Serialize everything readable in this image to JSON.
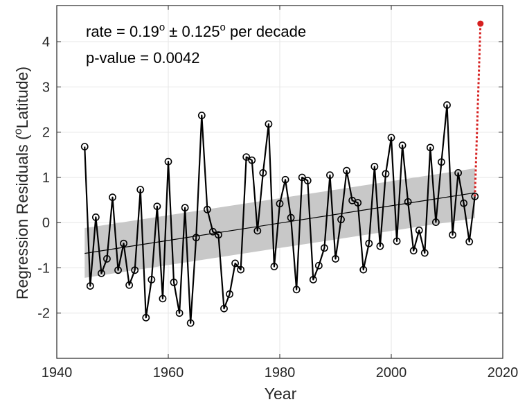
{
  "chart_data": {
    "type": "line",
    "xlabel": "Year",
    "ylabel_text": "Regression Residuals (",
    "ylabel_sup": "o",
    "ylabel_text2": "Latitude)",
    "xlim": [
      1940,
      2020
    ],
    "ylim": [
      -3,
      4.8
    ],
    "xticks": [
      1940,
      1960,
      1980,
      2000,
      2020
    ],
    "yticks": [
      -2,
      -1,
      0,
      1,
      2,
      3,
      4
    ],
    "grid": true,
    "annotations": {
      "rate_prefix": "rate = 0.19",
      "rate_sup1": "o",
      "rate_mid": " ± 0.125",
      "rate_sup2": "o",
      "rate_suffix": " per decade",
      "pvalue": "p-value = 0.0042"
    },
    "series": [
      {
        "style": "black line with open circle markers",
        "x": [
          1945,
          1946,
          1947,
          1948,
          1949,
          1950,
          1951,
          1952,
          1953,
          1954,
          1955,
          1956,
          1957,
          1958,
          1959,
          1960,
          1961,
          1962,
          1963,
          1964,
          1965,
          1966,
          1967,
          1968,
          1969,
          1970,
          1971,
          1972,
          1973,
          1974,
          1975,
          1976,
          1977,
          1978,
          1979,
          1980,
          1981,
          1982,
          1983,
          1984,
          1985,
          1986,
          1987,
          1988,
          1989,
          1990,
          1991,
          1992,
          1993,
          1994,
          1995,
          1996,
          1997,
          1998,
          1999,
          2000,
          2001,
          2002,
          2003,
          2004,
          2005,
          2006,
          2007,
          2008,
          2009,
          2010,
          2011,
          2012,
          2013,
          2014,
          2015
        ],
        "y": [
          1.68,
          -1.4,
          0.12,
          -1.12,
          -0.8,
          0.56,
          -1.05,
          -0.46,
          -1.38,
          -1.05,
          0.73,
          -2.1,
          -1.26,
          0.36,
          -1.68,
          1.35,
          -1.32,
          -2.0,
          0.33,
          -2.22,
          -0.33,
          2.37,
          0.29,
          -0.2,
          -0.27,
          -1.9,
          -1.58,
          -0.9,
          -1.04,
          1.45,
          1.38,
          -0.18,
          1.1,
          2.18,
          -0.97,
          0.42,
          0.95,
          0.11,
          -1.48,
          1.0,
          0.93,
          -1.26,
          -0.95,
          -0.56,
          1.05,
          -0.8,
          0.07,
          1.15,
          0.49,
          0.44,
          -1.04,
          -0.46,
          1.24,
          -0.52,
          1.08,
          1.88,
          -0.41,
          1.71,
          0.46,
          -0.62,
          -0.17,
          -0.67,
          1.66,
          0.01,
          1.34,
          2.6,
          -0.27,
          1.1,
          0.43,
          -0.42,
          0.58
        ]
      },
      {
        "style": "red dotted line with filled red point",
        "color": "#d62020",
        "x": [
          2015,
          2016
        ],
        "y": [
          0.58,
          4.4
        ]
      }
    ],
    "trend_line": {
      "x": [
        1945,
        2015
      ],
      "y": [
        -0.68,
        0.66
      ]
    },
    "confidence_band": {
      "x": [
        1945,
        2015
      ],
      "upper": [
        -0.12,
        1.2
      ],
      "lower": [
        -1.22,
        0.1
      ]
    },
    "colors": {
      "line": "#000000",
      "band": "#c8c8c8",
      "grid": "#e6e6e6",
      "highlight": "#d62020"
    }
  }
}
